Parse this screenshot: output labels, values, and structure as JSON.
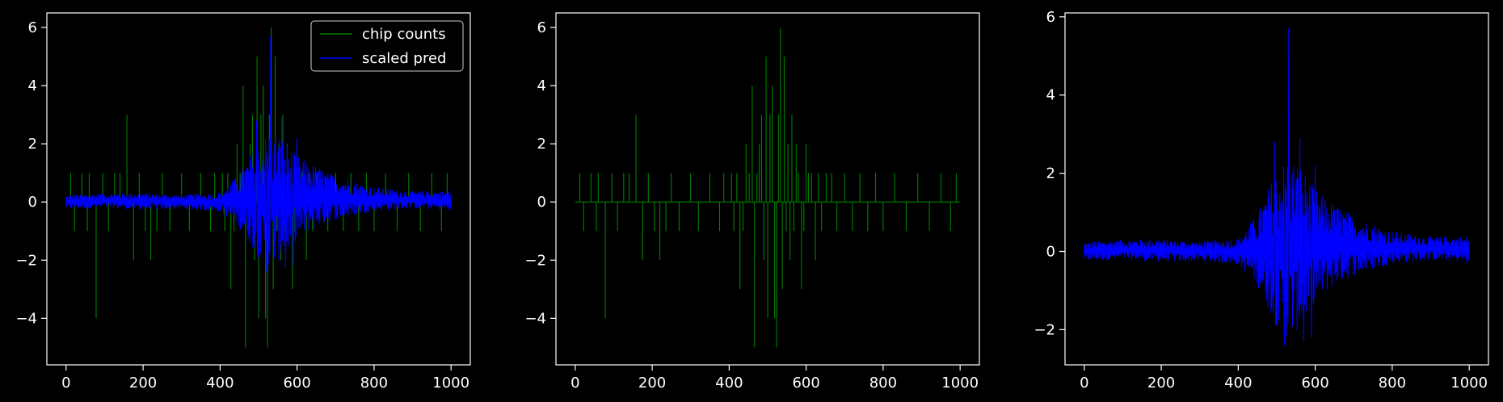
{
  "chart_data": [
    {
      "type": "line",
      "xlim": [
        -50,
        1050
      ],
      "ylim": [
        -5.6,
        6.5
      ],
      "xticks": [
        0,
        200,
        400,
        600,
        800,
        1000
      ],
      "yticks": [
        -4,
        -2,
        0,
        2,
        4,
        6
      ],
      "x_range": [
        0,
        999
      ],
      "legend": {
        "placement": "top-right",
        "entries": [
          "chip counts",
          "scaled pred"
        ]
      },
      "series": [
        {
          "name": "chip counts",
          "kind": "counts",
          "color": "#008000",
          "baseline": 0,
          "spikes": [
            [
              12,
              1
            ],
            [
              22,
              -1
            ],
            [
              41,
              1
            ],
            [
              55,
              -1
            ],
            [
              60,
              1
            ],
            [
              78,
              -4
            ],
            [
              95,
              1
            ],
            [
              110,
              -1
            ],
            [
              126,
              1
            ],
            [
              140,
              1
            ],
            [
              158,
              3
            ],
            [
              175,
              -2
            ],
            [
              190,
              1
            ],
            [
              206,
              -1
            ],
            [
              220,
              -2
            ],
            [
              236,
              -1
            ],
            [
              250,
              1
            ],
            [
              270,
              -1
            ],
            [
              300,
              1
            ],
            [
              320,
              -1
            ],
            [
              350,
              1
            ],
            [
              375,
              -1
            ],
            [
              386,
              1
            ],
            [
              406,
              1
            ],
            [
              412,
              -1
            ],
            [
              420,
              1
            ],
            [
              428,
              -3
            ],
            [
              436,
              -1
            ],
            [
              444,
              2
            ],
            [
              452,
              1
            ],
            [
              460,
              4
            ],
            [
              466,
              -5
            ],
            [
              472,
              1
            ],
            [
              478,
              2
            ],
            [
              484,
              3
            ],
            [
              490,
              -2
            ],
            [
              496,
              5
            ],
            [
              500,
              -4
            ],
            [
              506,
              3
            ],
            [
              512,
              4
            ],
            [
              518,
              -4
            ],
            [
              523,
              -5
            ],
            [
              528,
              3
            ],
            [
              533,
              6
            ],
            [
              538,
              -3
            ],
            [
              543,
              5
            ],
            [
              548,
              -1
            ],
            [
              553,
              2
            ],
            [
              558,
              -2
            ],
            [
              563,
              3
            ],
            [
              568,
              -1
            ],
            [
              574,
              2
            ],
            [
              580,
              1
            ],
            [
              588,
              -3
            ],
            [
              594,
              -1
            ],
            [
              600,
              2
            ],
            [
              606,
              1
            ],
            [
              614,
              1
            ],
            [
              624,
              -2
            ],
            [
              632,
              1
            ],
            [
              640,
              -1
            ],
            [
              652,
              1
            ],
            [
              666,
              1
            ],
            [
              680,
              -1
            ],
            [
              700,
              1
            ],
            [
              720,
              -1
            ],
            [
              740,
              1
            ],
            [
              760,
              -1
            ],
            [
              780,
              1
            ],
            [
              800,
              -1
            ],
            [
              830,
              1
            ],
            [
              860,
              -1
            ],
            [
              890,
              1
            ],
            [
              920,
              -1
            ],
            [
              950,
              1
            ],
            [
              975,
              -1
            ],
            [
              990,
              1
            ]
          ]
        },
        {
          "name": "scaled pred",
          "kind": "pred",
          "color": "#0000ff",
          "upper": [
            [
              0,
              0.15
            ],
            [
              100,
              0.2
            ],
            [
              200,
              0.2
            ],
            [
              300,
              0.15
            ],
            [
              400,
              0.2
            ],
            [
              450,
              0.6
            ],
            [
              500,
              1.3
            ],
            [
              530,
              1.5
            ],
            [
              560,
              1.4
            ],
            [
              600,
              1.0
            ],
            [
              650,
              0.8
            ],
            [
              700,
              0.6
            ],
            [
              800,
              0.35
            ],
            [
              900,
              0.25
            ],
            [
              1000,
              0.25
            ]
          ],
          "lower": [
            [
              0,
              -0.15
            ],
            [
              100,
              -0.1
            ],
            [
              200,
              -0.15
            ],
            [
              300,
              -0.15
            ],
            [
              400,
              -0.2
            ],
            [
              450,
              -0.5
            ],
            [
              500,
              -1.1
            ],
            [
              530,
              -1.3
            ],
            [
              560,
              -1.1
            ],
            [
              600,
              -0.7
            ],
            [
              650,
              -0.45
            ],
            [
              700,
              -0.3
            ],
            [
              800,
              -0.15
            ],
            [
              900,
              -0.1
            ],
            [
              1000,
              -0.15
            ]
          ],
          "peaks": [
            [
              531,
              5.7
            ],
            [
              520,
              -2.4
            ],
            [
              560,
              2.9
            ],
            [
              570,
              -2.3
            ],
            [
              495,
              2.8
            ],
            [
              590,
              -2.2
            ],
            [
              600,
              2.2
            ]
          ]
        }
      ]
    },
    {
      "type": "line",
      "xlim": [
        -50,
        1050
      ],
      "ylim": [
        -5.6,
        6.5
      ],
      "xticks": [
        0,
        200,
        400,
        600,
        800,
        1000
      ],
      "yticks": [
        -4,
        -2,
        0,
        2,
        4,
        6
      ],
      "x_range": [
        0,
        999
      ],
      "series": [
        {
          "kind": "counts",
          "color": "#008000",
          "baseline": 0,
          "same_as": "chip counts"
        }
      ]
    },
    {
      "type": "line",
      "xlim": [
        -50,
        1050
      ],
      "ylim": [
        -2.9,
        6.1
      ],
      "xticks": [
        0,
        200,
        400,
        600,
        800,
        1000
      ],
      "yticks": [
        -2,
        0,
        2,
        4,
        6
      ],
      "x_range": [
        0,
        999
      ],
      "series": [
        {
          "kind": "pred",
          "color": "#0000ff",
          "same_as": "scaled pred"
        }
      ]
    }
  ]
}
